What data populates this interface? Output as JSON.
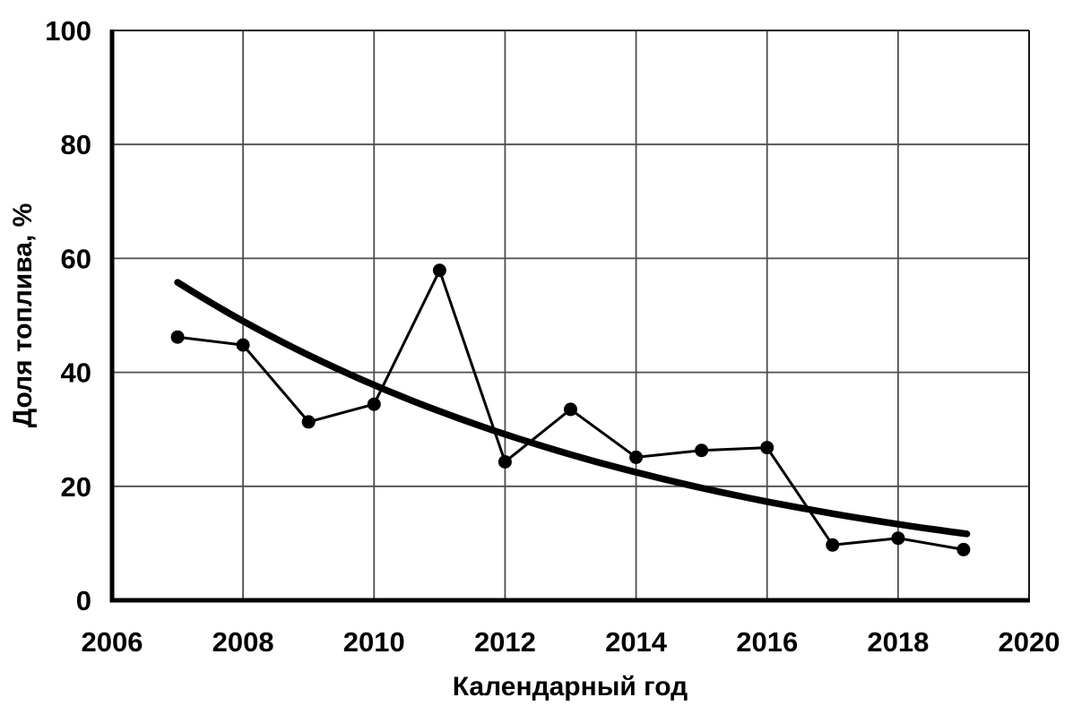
{
  "chart_data": {
    "type": "line",
    "title": "",
    "xlabel": "Календарный год",
    "ylabel": "Доля топлива, %",
    "xlim": [
      2006,
      2020
    ],
    "ylim": [
      0,
      100
    ],
    "x_ticks": [
      2006,
      2008,
      2010,
      2012,
      2014,
      2016,
      2018,
      2020
    ],
    "y_ticks": [
      0,
      20,
      40,
      60,
      80,
      100
    ],
    "grid": true,
    "legend": "none",
    "series": [
      {
        "name": "fuel-share-observed",
        "marker": "filled-circle",
        "x": [
          2007,
          2008,
          2009,
          2010,
          2011,
          2012,
          2013,
          2014,
          2015,
          2016,
          2017,
          2018,
          2019
        ],
        "y": [
          46.2,
          44.8,
          31.3,
          34.4,
          57.9,
          24.3,
          33.5,
          25.1,
          26.3,
          26.8,
          9.7,
          10.9,
          8.9
        ]
      }
    ],
    "trend": {
      "name": "fuel-share-trend",
      "type": "exponential",
      "x_start": 2007,
      "x_end": 2019.05,
      "y_start": 55.8,
      "y_end": 11.6,
      "decay_per_year": 0.13
    },
    "colors": {
      "data_line": "#000000",
      "marker": "#000000",
      "trend": "#000000",
      "grid": "#4d4d4d",
      "border": "#1a1a1a",
      "axis": "#000000",
      "background": "#ffffff"
    }
  }
}
